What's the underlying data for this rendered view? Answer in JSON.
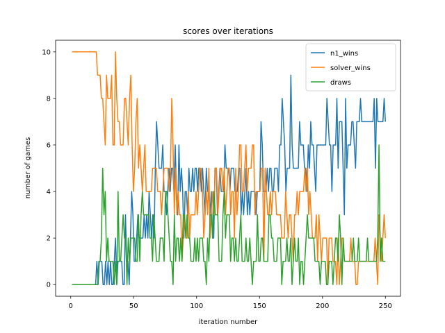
{
  "chart_data": {
    "type": "line",
    "title": "scores over iterations",
    "xlabel": "iteration number",
    "ylabel": "number of games",
    "xlim": [
      -12,
      262
    ],
    "ylim": [
      -0.5,
      10.5
    ],
    "xticks": [
      0,
      50,
      100,
      150,
      200,
      250
    ],
    "yticks": [
      0,
      2,
      4,
      6,
      8,
      10
    ],
    "grid": false,
    "legend_position": "top-right",
    "x_start": 1,
    "x_end": 250,
    "series": [
      {
        "name": "n1_wins",
        "color": "#1f77b4",
        "values": [
          0,
          0,
          0,
          0,
          0,
          0,
          0,
          0,
          0,
          0,
          0,
          0,
          0,
          0,
          0,
          0,
          0,
          0,
          0,
          0,
          1,
          0,
          1,
          1,
          1,
          0,
          0,
          1,
          0,
          1,
          0,
          1,
          0,
          0,
          1,
          2,
          0,
          1,
          1,
          1,
          1,
          0,
          0,
          3,
          1,
          1,
          0,
          2,
          4,
          3,
          1,
          1,
          2,
          3,
          2,
          2,
          2,
          2,
          3,
          2,
          3,
          2,
          4,
          3,
          2,
          3,
          2,
          5,
          7,
          6,
          5,
          5,
          5,
          6,
          4,
          4,
          3,
          4,
          5,
          4,
          5,
          5,
          4,
          6,
          4,
          3,
          6,
          4,
          5,
          4,
          2,
          4,
          4,
          3,
          5,
          4,
          4,
          5,
          4,
          5,
          5,
          4,
          5,
          5,
          4,
          5,
          4,
          3,
          5,
          4,
          4,
          3,
          4,
          2,
          2,
          5,
          5,
          3,
          4,
          5,
          4,
          4,
          4,
          6,
          5,
          5,
          5,
          4,
          5,
          5,
          5,
          4,
          4,
          4,
          5,
          5,
          3,
          4,
          3,
          4,
          5,
          3,
          4,
          3,
          4,
          4,
          4,
          4,
          3,
          4,
          4,
          4,
          7,
          6,
          4,
          4,
          4,
          5,
          4,
          5,
          5,
          4,
          4,
          5,
          5,
          5,
          4,
          6,
          6,
          8,
          7,
          6,
          4,
          5,
          5,
          5,
          9,
          6,
          5,
          5,
          5,
          5,
          5,
          7,
          6,
          6,
          6,
          5,
          5,
          4,
          6,
          5,
          7,
          6,
          6,
          5,
          4,
          6,
          6,
          6,
          6,
          6,
          6,
          6,
          6,
          8,
          7,
          6,
          6,
          4,
          6,
          6,
          6,
          8,
          5,
          7,
          7,
          7,
          5,
          3,
          8,
          5,
          6,
          6,
          6,
          7,
          7,
          6,
          5,
          7,
          7,
          7,
          8,
          7,
          7,
          7,
          7,
          7,
          7,
          7,
          7,
          7,
          7,
          8,
          5,
          8,
          7,
          7,
          7,
          7,
          7,
          8,
          7
        ]
      },
      {
        "name": "solver_wins",
        "color": "#ff7f0e",
        "values": [
          10,
          10,
          10,
          10,
          10,
          10,
          10,
          10,
          10,
          10,
          10,
          10,
          10,
          10,
          10,
          10,
          10,
          10,
          10,
          10,
          9,
          9,
          9,
          8,
          8,
          7,
          6,
          9,
          8,
          8,
          8,
          9,
          6,
          6,
          10,
          8,
          7,
          7,
          6,
          6,
          6,
          8,
          8,
          7,
          6,
          8,
          9,
          6,
          4,
          5,
          7,
          8,
          5,
          6,
          5,
          4,
          5,
          6,
          4,
          4,
          4,
          4,
          4,
          5,
          5,
          5,
          5,
          4,
          4,
          4,
          3,
          4,
          5,
          5,
          5,
          5,
          4,
          5,
          8,
          6,
          3,
          5,
          3,
          4,
          3,
          3,
          1,
          2,
          3,
          2,
          2,
          4,
          2,
          3,
          3,
          3,
          3,
          4,
          3,
          4,
          5,
          5,
          4,
          2,
          3,
          4,
          3,
          5,
          2,
          3,
          4,
          3,
          5,
          5,
          3,
          4,
          5,
          5,
          4,
          5,
          3,
          4,
          5,
          5,
          3,
          4,
          4,
          2,
          5,
          3,
          4,
          6,
          6,
          4,
          4,
          5,
          6,
          4,
          5,
          5,
          5,
          6,
          6,
          3,
          4,
          4,
          4,
          4,
          5,
          5,
          1,
          5,
          4,
          3,
          3,
          4,
          3,
          4,
          4,
          4,
          3,
          3,
          3,
          3,
          2,
          2,
          2,
          4,
          3,
          2,
          3,
          3,
          2,
          1,
          3,
          3,
          4,
          3,
          4,
          4,
          4,
          4,
          5,
          4,
          5,
          3,
          4,
          3,
          2,
          2,
          2,
          3,
          1,
          3,
          2,
          1,
          2,
          2,
          2,
          2,
          0,
          2,
          2,
          2,
          1,
          1,
          1,
          0,
          2,
          0,
          1,
          2,
          2,
          1,
          1,
          1,
          1,
          1,
          2,
          1,
          1,
          1,
          0,
          0,
          1,
          1,
          1,
          1,
          1,
          1,
          1,
          1,
          1,
          1,
          1,
          1,
          1,
          2,
          1,
          0,
          3,
          2,
          1,
          2,
          3,
          2
        ]
      },
      {
        "name": "draws",
        "color": "#2ca02c",
        "values": [
          0,
          0,
          0,
          0,
          0,
          0,
          0,
          0,
          0,
          0,
          0,
          0,
          0,
          0,
          0,
          0,
          0,
          0,
          0,
          0,
          0,
          1,
          1,
          2,
          5,
          3,
          4,
          1,
          2,
          1,
          1,
          1,
          1,
          0,
          1,
          0,
          4,
          1,
          1,
          2,
          3,
          2,
          2,
          0,
          2,
          1,
          2,
          2,
          2,
          2,
          1,
          1,
          3,
          1,
          3,
          4,
          3,
          3,
          3,
          3,
          3,
          2,
          2,
          1,
          3,
          2,
          1,
          1,
          1,
          2,
          2,
          2,
          1,
          4,
          4,
          3,
          2,
          1,
          1,
          0,
          3,
          1,
          2,
          2,
          1,
          2,
          1,
          3,
          3,
          2,
          3,
          2,
          2,
          1,
          1,
          1,
          2,
          1,
          2,
          1,
          2,
          2,
          2,
          1,
          1,
          0,
          2,
          1,
          3,
          3,
          2,
          4,
          3,
          3,
          3,
          1,
          1,
          1,
          3,
          4,
          2,
          3,
          3,
          3,
          1,
          2,
          2,
          1,
          2,
          1,
          1,
          2,
          3,
          1,
          1,
          1,
          2,
          1,
          1,
          2,
          1,
          0,
          1,
          1,
          1,
          3,
          1,
          1,
          2,
          2,
          1,
          1,
          1,
          1,
          3,
          3,
          2,
          2,
          1,
          1,
          1,
          2,
          2,
          2,
          0,
          1,
          1,
          1,
          2,
          1,
          1,
          2,
          0,
          1,
          2,
          1,
          1,
          2,
          0,
          1,
          1,
          0,
          1,
          2,
          3,
          2,
          2,
          2,
          2,
          2,
          1,
          1,
          1,
          1,
          0,
          1,
          1,
          1,
          1,
          0,
          0,
          1,
          1,
          1,
          0,
          1,
          2,
          2,
          1,
          3,
          2,
          0,
          2,
          1,
          1,
          1,
          1,
          1,
          1,
          1,
          2,
          1,
          1,
          1,
          2,
          1,
          1,
          1,
          1,
          1,
          1,
          2,
          1,
          1,
          1,
          1,
          1,
          1,
          1,
          2,
          6,
          1,
          2,
          1,
          1,
          1
        ]
      }
    ]
  }
}
